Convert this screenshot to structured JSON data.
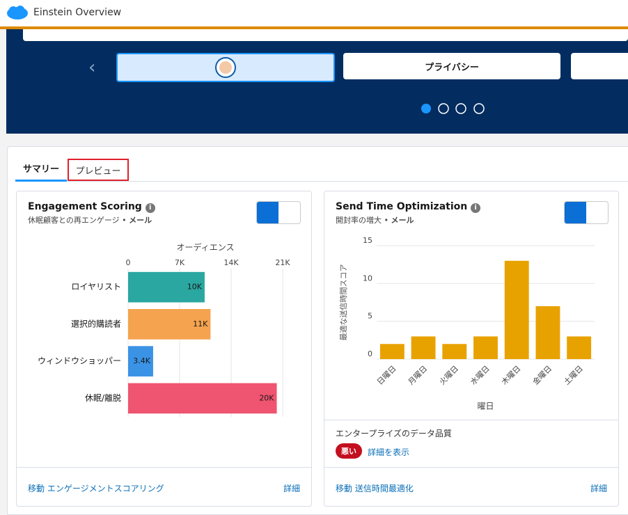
{
  "header": {
    "title": "Einstein Overview"
  },
  "carousel": {
    "items": [
      "プライバシー"
    ]
  },
  "tabs": [
    "サマリー",
    "プレビュー"
  ],
  "cards": [
    {
      "title": "Engagement Scoring",
      "subtitle": "休眠顧客との再エンゲージ •",
      "channel": "メール",
      "footer_link": "移動 エンゲージメントスコアリング",
      "footer_detail": "詳細"
    },
    {
      "title": "Send Time Optimization",
      "subtitle": "開封率の増大 •",
      "channel": "メール",
      "quality_label": "エンタープライズのデータ品質",
      "quality_badge": "悪い",
      "quality_link": "詳細を表示",
      "footer_link": "移動 送信時間最適化",
      "footer_detail": "詳細"
    }
  ],
  "chart_data": [
    {
      "type": "bar",
      "horizontal": true,
      "x_label": "オーディエンス",
      "categories": [
        "ロイヤリスト",
        "選択的購読者",
        "ウィンドウショッパー",
        "休眠/離脱"
      ],
      "values": [
        10400,
        11200,
        3400,
        20200
      ],
      "value_labels": [
        "10K",
        "11K",
        "3.4K",
        "20K"
      ],
      "colors": [
        "#2aa7a0",
        "#f5a34f",
        "#3b93e6",
        "#ef5470"
      ],
      "xlim": [
        0,
        21000
      ],
      "xticks": [
        0,
        {
          "value": 7000,
          "label": "7K"
        },
        {
          "value": 14000,
          "label": "14K"
        },
        {
          "value": 21000,
          "label": "21K"
        }
      ],
      "grid": true
    },
    {
      "type": "bar",
      "horizontal": false,
      "y_label": "最適な送信時間スコア",
      "x_label": "曜日",
      "categories": [
        "日曜日",
        "月曜日",
        "火曜日",
        "水曜日",
        "木曜日",
        "金曜日",
        "土曜日"
      ],
      "values": [
        2,
        3,
        2,
        3,
        13,
        7,
        3
      ],
      "color": "#e8a200",
      "ylim": [
        0,
        15
      ],
      "yticks": [
        0,
        5,
        10,
        15
      ],
      "grid": true
    }
  ]
}
